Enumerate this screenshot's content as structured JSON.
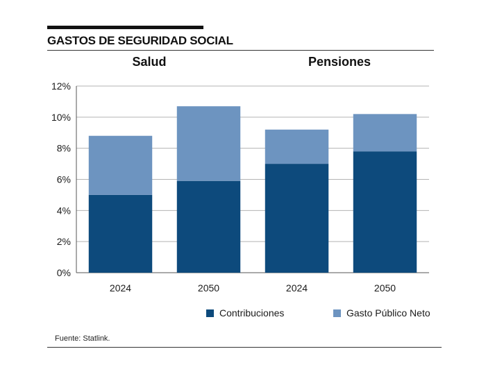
{
  "header": {
    "title": "GASTOS DE SEGURIDAD SOCIAL"
  },
  "source": "Fuente: Statlink.",
  "colors": {
    "contribuciones": "#0d4a7c",
    "gasto_publico_neto": "#6d94c0",
    "grid": "#b3b3b3"
  },
  "chart_data": {
    "type": "bar",
    "stacked": true,
    "groups": [
      {
        "label": "Salud",
        "categories": [
          "2024",
          "2050"
        ]
      },
      {
        "label": "Pensiones",
        "categories": [
          "2024",
          "2050"
        ]
      }
    ],
    "categories": [
      "2024",
      "2050",
      "2024",
      "2050"
    ],
    "series": [
      {
        "name": "Contribuciones",
        "values": [
          5.0,
          5.9,
          7.0,
          7.8
        ]
      },
      {
        "name": "Gasto Público Neto",
        "values": [
          3.8,
          4.8,
          2.2,
          2.4
        ]
      }
    ],
    "yticks": [
      "0%",
      "2%",
      "4%",
      "6%",
      "8%",
      "10%",
      "12%"
    ],
    "ylim": [
      0,
      12
    ],
    "grid": true,
    "legend_position": "bottom"
  }
}
